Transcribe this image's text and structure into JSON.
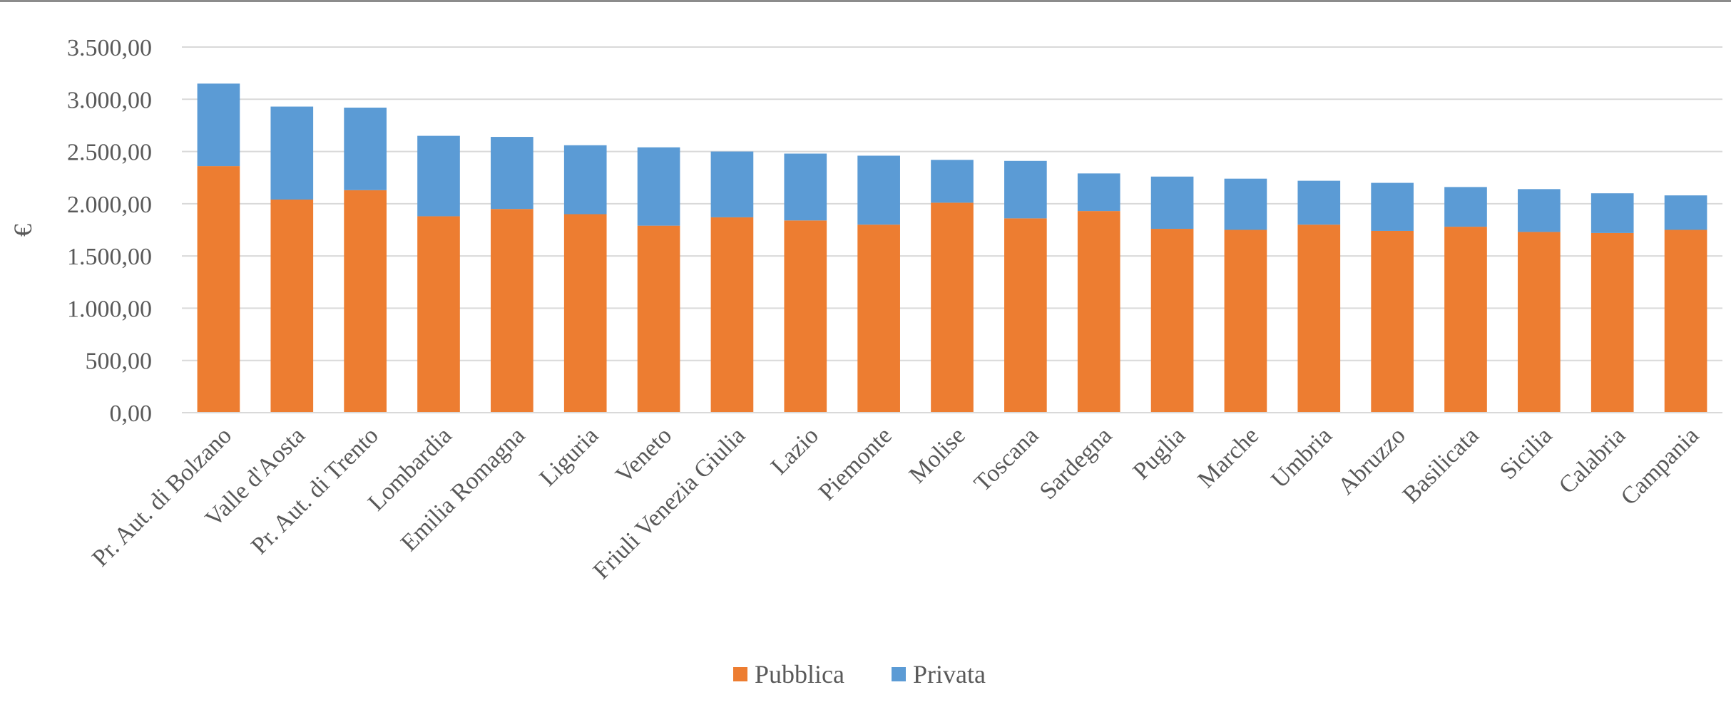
{
  "chart_data": {
    "type": "bar",
    "stacked": true,
    "title": "",
    "xlabel": "",
    "ylabel": "€",
    "ylim": [
      0,
      3500
    ],
    "y_ticks": [
      "0,00",
      "500,00",
      "1.000,00",
      "1.500,00",
      "2.000,00",
      "2.500,00",
      "3.000,00",
      "3.500,00"
    ],
    "grid": true,
    "legend": "bottom-center",
    "categories": [
      "Pr. Aut. di Bolzano",
      "Valle d'Aosta",
      "Pr. Aut. di Trento",
      "Lombardia",
      "Emilia Romagna",
      "Liguria",
      "Veneto",
      "Friuli Venezia Giulia",
      "Lazio",
      "Piemonte",
      "Molise",
      "Toscana",
      "Sardegna",
      "Puglia",
      "Marche",
      "Umbria",
      "Abruzzo",
      "Basilicata",
      "Sicilia",
      "Calabria",
      "Campania"
    ],
    "series": [
      {
        "name": "Pubblica",
        "color": "#ed7d31",
        "values": [
          2360,
          2040,
          2130,
          1880,
          1950,
          1900,
          1790,
          1870,
          1840,
          1800,
          2010,
          1860,
          1930,
          1760,
          1750,
          1800,
          1740,
          1780,
          1730,
          1720,
          1750
        ]
      },
      {
        "name": "Privata",
        "color": "#5b9bd5",
        "values": [
          790,
          890,
          790,
          770,
          690,
          660,
          750,
          630,
          640,
          660,
          410,
          550,
          360,
          500,
          490,
          420,
          460,
          380,
          410,
          380,
          330
        ]
      }
    ]
  }
}
